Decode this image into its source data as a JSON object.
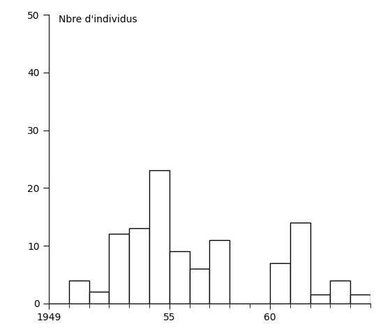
{
  "chart_data": {
    "type": "histogram",
    "y_label": "Nbre d'individus",
    "bins": [
      1949,
      1950,
      1951,
      1952,
      1953,
      1954,
      1955,
      1956,
      1957,
      1958,
      1959,
      1960,
      1961,
      1962,
      1963,
      1964,
      1965
    ],
    "values": [
      0,
      4,
      2,
      12,
      13,
      23,
      9,
      6,
      11,
      0,
      0,
      7,
      14,
      1.5,
      4,
      1.5
    ],
    "color": "#ffffff",
    "xlim": [
      1949,
      1965
    ],
    "xticks": [
      1949,
      {
        "value": 1955,
        "label": "55"
      },
      {
        "value": 1960,
        "label": "60"
      }
    ],
    "ylim": [
      0,
      50
    ],
    "yticks": [
      0,
      10,
      20,
      30,
      40,
      50
    ],
    "grid": false
  }
}
